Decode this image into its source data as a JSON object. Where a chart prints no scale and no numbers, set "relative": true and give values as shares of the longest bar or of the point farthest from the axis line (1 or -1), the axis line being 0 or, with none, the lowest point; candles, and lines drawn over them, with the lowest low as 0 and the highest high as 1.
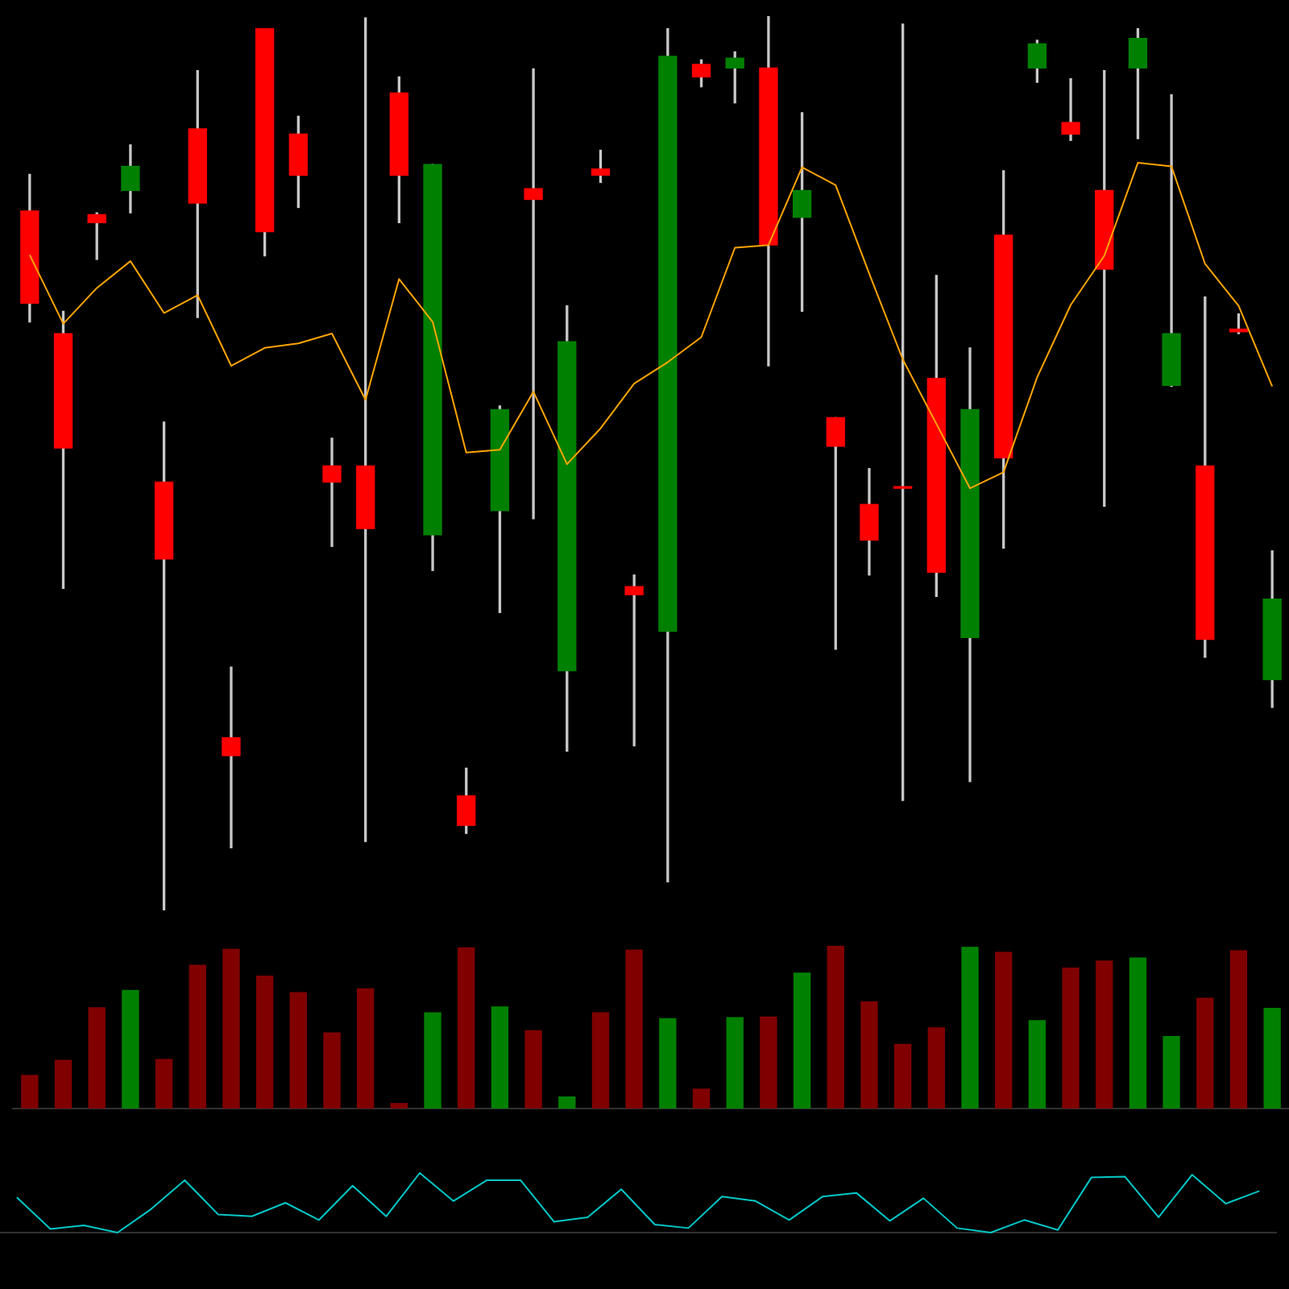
{
  "chart_data": [
    {
      "type": "candlestick",
      "relative": true,
      "categories": [
        null,
        null,
        null,
        null,
        null,
        null,
        null,
        null,
        null,
        null,
        null,
        null,
        null,
        null,
        null,
        null,
        null,
        null,
        null,
        null,
        null,
        null,
        null,
        null,
        null,
        null,
        null,
        null,
        null,
        null,
        null,
        null,
        null,
        null,
        null,
        null,
        null,
        null
      ],
      "ohlc": [
        [
          0.782,
          0.823,
          0.658,
          0.679
        ],
        [
          0.645,
          0.67,
          0.36,
          0.517
        ],
        [
          0.778,
          0.78,
          0.728,
          0.769
        ],
        [
          0.805,
          0.856,
          0.78,
          0.832
        ],
        [
          0.479,
          0.546,
          0,
          0.393
        ],
        [
          0.874,
          0.939,
          0.663,
          0.791
        ],
        [
          0.193,
          0.272,
          0.07,
          0.173
        ],
        [
          0.986,
          0.986,
          0.732,
          0.759
        ],
        [
          0.868,
          0.888,
          0.786,
          0.822
        ],
        [
          0.497,
          0.528,
          0.407,
          0.479
        ],
        [
          0.497,
          0.998,
          0.077,
          0.427
        ],
        [
          0.914,
          0.932,
          0.769,
          0.822
        ],
        [
          0.42,
          0.834,
          0.38,
          0.834
        ],
        [
          0.128,
          0.159,
          0.086,
          0.095
        ],
        [
          0.447,
          0.564,
          0.333,
          0.56
        ],
        [
          0.807,
          0.941,
          0.438,
          0.795
        ],
        [
          0.268,
          0.676,
          0.178,
          0.636
        ],
        [
          0.829,
          0.85,
          0.814,
          0.822
        ],
        [
          0.362,
          0.375,
          0.184,
          0.353
        ],
        [
          0.312,
          0.986,
          0.032,
          0.955
        ],
        [
          0.946,
          0.951,
          0.921,
          0.932
        ],
        [
          0.942,
          0.96,
          0.903,
          0.953
        ],
        [
          0.942,
          1,
          0.609,
          0.744
        ],
        [
          0.775,
          0.892,
          0.67,
          0.805
        ],
        [
          0.551,
          0.551,
          0.292,
          0.519
        ],
        [
          0.454,
          0.494,
          0.375,
          0.414
        ],
        [
          0.472,
          0.991,
          0.123,
          0.472
        ],
        [
          0.595,
          0.71,
          0.351,
          0.378
        ],
        [
          0.305,
          0.629,
          0.144,
          0.56
        ],
        [
          0.755,
          0.827,
          0.405,
          0.506
        ],
        [
          0.942,
          0.973,
          0.926,
          0.969
        ],
        [
          0.881,
          0.93,
          0.861,
          0.868
        ],
        [
          0.805,
          0.939,
          0.452,
          0.717
        ],
        [
          0.942,
          0.986,
          0.863,
          0.975
        ],
        [
          0.587,
          0.912,
          0.586,
          0.645
        ],
        [
          0.497,
          0.686,
          0.283,
          0.303
        ],
        [
          0.65,
          0.667,
          0.645,
          0.647
        ],
        [
          0.258,
          0.402,
          0.227,
          0.348
        ]
      ],
      "colors": [
        "#ff0000",
        "#ff0000",
        "#ff0000",
        "#008000",
        "#ff0000",
        "#ff0000",
        "#ff0000",
        "#ff0000",
        "#ff0000",
        "#ff0000",
        "#ff0000",
        "#ff0000",
        "#008000",
        "#ff0000",
        "#008000",
        "#ff0000",
        "#008000",
        "#ff0000",
        "#ff0000",
        "#008000",
        "#ff0000",
        "#008000",
        "#ff0000",
        "#008000",
        "#ff0000",
        "#ff0000",
        "#ff0000",
        "#ff0000",
        "#008000",
        "#ff0000",
        "#008000",
        "#ff0000",
        "#ff0000",
        "#008000",
        "#008000",
        "#ff0000",
        "#ff0000",
        "#008000"
      ],
      "series": [
        {
          "type": "line",
          "color": "#ffa500",
          "values": [
            0.733,
            0.656,
            0.696,
            0.726,
            0.668,
            0.688,
            0.609,
            0.629,
            0.634,
            0.645,
            0.571,
            0.706,
            0.658,
            0.512,
            0.515,
            0.58,
            0.499,
            0.539,
            0.589,
            0.613,
            0.641,
            0.741,
            0.744,
            0.831,
            0.811,
            0.712,
            0.616,
            0.544,
            0.472,
            0.49,
            0.596,
            0.677,
            0.732,
            0.836,
            0.832,
            0.723,
            0.676,
            0.586
          ]
        }
      ]
    },
    {
      "type": "bar",
      "relative": true,
      "categories": [
        null,
        null,
        null,
        null,
        null,
        null,
        null,
        null,
        null,
        null,
        null,
        null,
        null,
        null,
        null,
        null,
        null,
        null,
        null,
        null,
        null,
        null,
        null,
        null,
        null,
        null,
        null,
        null,
        null,
        null,
        null,
        null,
        null,
        null,
        null,
        null,
        null,
        null
      ],
      "values": [
        0.204,
        0.296,
        0.619,
        0.726,
        0.301,
        0.881,
        0.978,
        0.814,
        0.712,
        0.465,
        0.735,
        0.031,
        0.588,
        0.987,
        0.624,
        0.478,
        0.071,
        0.588,
        0.973,
        0.553,
        0.119,
        0.558,
        0.562,
        0.832,
        1,
        0.655,
        0.394,
        0.496,
        0.991,
        0.96,
        0.54,
        0.863,
        0.907,
        0.925,
        0.442,
        0.677,
        0.969,
        0.615
      ],
      "colors": [
        "#800000",
        "#800000",
        "#800000",
        "#008000",
        "#800000",
        "#800000",
        "#800000",
        "#800000",
        "#800000",
        "#800000",
        "#800000",
        "#800000",
        "#008000",
        "#800000",
        "#008000",
        "#800000",
        "#008000",
        "#800000",
        "#800000",
        "#008000",
        "#800000",
        "#008000",
        "#800000",
        "#008000",
        "#800000",
        "#800000",
        "#800000",
        "#800000",
        "#008000",
        "#800000",
        "#008000",
        "#800000",
        "#800000",
        "#008000",
        "#008000",
        "#800000",
        "#800000",
        "#008000"
      ]
    },
    {
      "type": "line",
      "relative": true,
      "categories": [
        null,
        null,
        null,
        null,
        null,
        null,
        null,
        null,
        null,
        null,
        null,
        null,
        null,
        null,
        null,
        null,
        null,
        null,
        null,
        null,
        null,
        null,
        null,
        null,
        null,
        null,
        null,
        null,
        null,
        null,
        null,
        null,
        null,
        null,
        null,
        null,
        null,
        null
      ],
      "series": [
        {
          "color": "#00c8c8",
          "values": [
            0.591,
            0.061,
            0.121,
            0,
            0.394,
            0.879,
            0.303,
            0.273,
            0.5,
            0.212,
            0.788,
            0.273,
            1,
            0.53,
            0.879,
            0.879,
            0.182,
            0.258,
            0.727,
            0.136,
            0.076,
            0.606,
            0.53,
            0.212,
            0.606,
            0.667,
            0.197,
            0.576,
            0.076,
            0,
            0.212,
            0.045,
            0.924,
            0.939,
            0.258,
            0.97,
            0.485,
            0.697
          ]
        }
      ]
    }
  ]
}
